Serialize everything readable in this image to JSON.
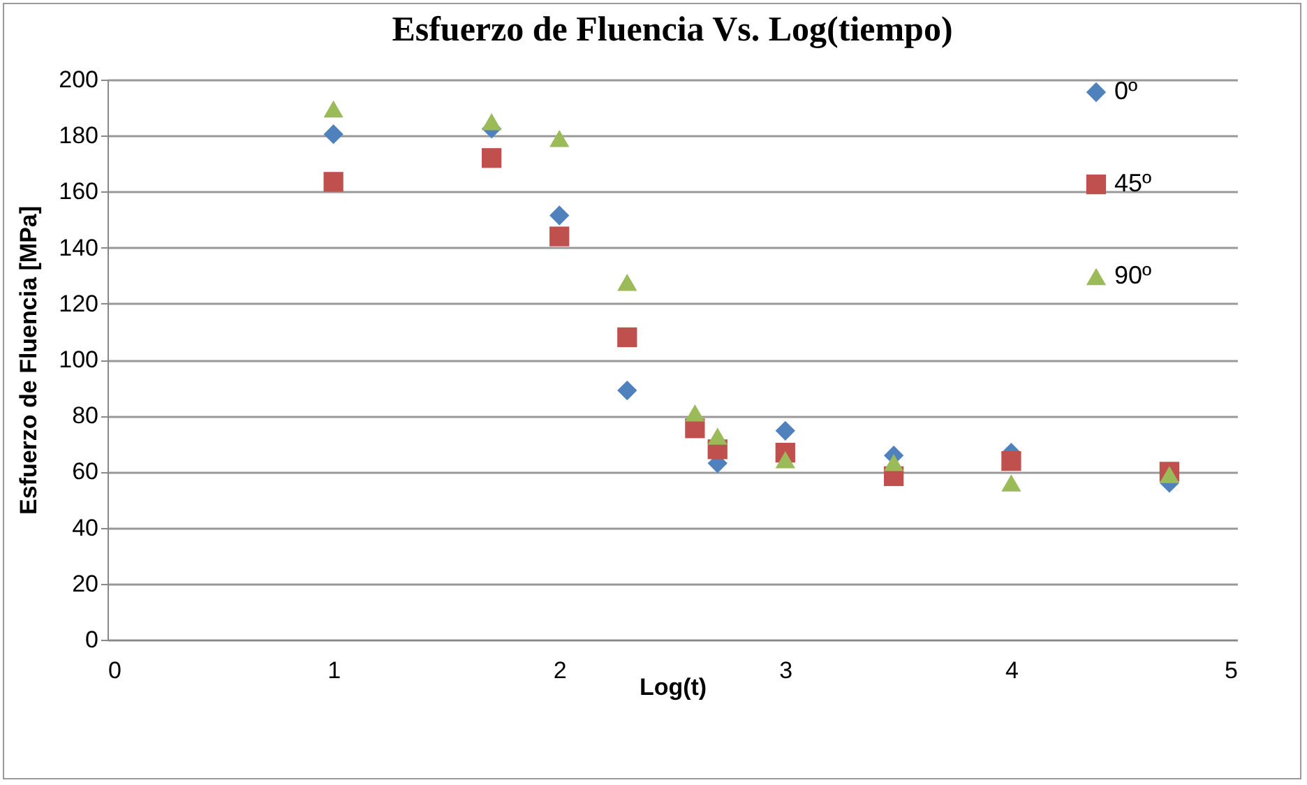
{
  "chart_data": {
    "type": "scatter",
    "title": "Esfuerzo de Fluencia Vs. Log(tiempo)",
    "xlabel": "Log(t)",
    "ylabel": "Esfuerzo de Fluencia [MPa]",
    "xlim": [
      0,
      5
    ],
    "xticks": [
      0,
      1,
      2,
      3,
      4,
      5
    ],
    "ylim": [
      0,
      200
    ],
    "yticks": [
      0,
      20,
      40,
      60,
      80,
      100,
      120,
      140,
      160,
      180,
      200
    ],
    "grid": "y",
    "legend": "right",
    "series": [
      {
        "name": "0º",
        "color": "#4f81bd",
        "marker": "diamond",
        "x": [
          1,
          1.7,
          2,
          2.3,
          2.7,
          3,
          3.48,
          4,
          4.7
        ],
        "values": [
          180.5,
          182.5,
          151.5,
          89,
          63,
          74.6,
          65.8,
          66.8,
          56
        ]
      },
      {
        "name": "45º",
        "color": "#c0504d",
        "marker": "square",
        "x": [
          1,
          1.7,
          2,
          2.3,
          2.6,
          2.7,
          3,
          3.48,
          4,
          4.7
        ],
        "values": [
          163.5,
          172,
          144,
          108,
          75.5,
          68,
          66.8,
          58.4,
          63.8,
          60
        ]
      },
      {
        "name": "90º",
        "color": "#9bbb59",
        "marker": "triangle",
        "x": [
          1,
          1.7,
          2,
          2.3,
          2.6,
          2.7,
          3,
          3.48,
          4,
          4.7
        ],
        "values": [
          189.5,
          185,
          179,
          127.6,
          81,
          72.7,
          64.3,
          63.3,
          56,
          59
        ]
      }
    ]
  }
}
